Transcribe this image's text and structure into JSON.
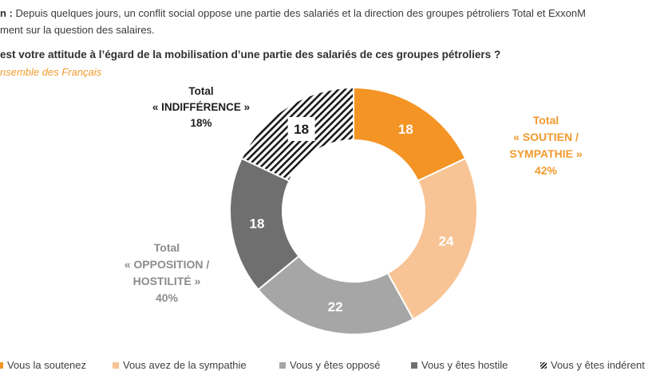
{
  "header": {
    "intro_bold": "n :",
    "intro_line1": " Depuis quelques jours, un conflit social oppose une partie des salariés et la direction des groupes pétroliers Total et ExxonM",
    "intro_line2": "ment sur la question des salaires.",
    "question": "est votre attitude à l’égard de la mobilisation d’une partie des salariés de ces groupes pétroliers ?",
    "base": "nsemble des Français"
  },
  "totals": {
    "indifference": {
      "line1": "Total",
      "line2": "« INDIFFÉRENCE »",
      "line3": "18%"
    },
    "soutien": {
      "line1": "Total",
      "line2": "« SOUTIEN /",
      "line3": "SYMPATHIE »",
      "line4": "42%"
    },
    "opposition": {
      "line1": "Total",
      "line2": "« OPPOSITION /",
      "line3": "HOSTILITÉ »",
      "line4": "40%"
    }
  },
  "chart_data": {
    "type": "pie",
    "donut": true,
    "start": "top",
    "direction": "clockwise",
    "slices": [
      {
        "label": "Vous la soutenez",
        "value": 18,
        "color": "#f39424",
        "text_color": "#ffffff"
      },
      {
        "label": "Vous avez de la sympathie",
        "value": 24,
        "color": "#f8c495",
        "text_color": "#ffffff"
      },
      {
        "label": "Vous y êtes opposé",
        "value": 22,
        "color": "#a6a6a6",
        "text_color": "#ffffff"
      },
      {
        "label": "Vous y êtes hostile",
        "value": 18,
        "color": "#6f6f6f",
        "text_color": "#ffffff"
      },
      {
        "label": "Vous y êtes indérent",
        "value": 18,
        "color": "#1a1a1a",
        "pattern": "hatched",
        "text_color": "#1a1a1a"
      }
    ],
    "legend_position": "bottom"
  }
}
